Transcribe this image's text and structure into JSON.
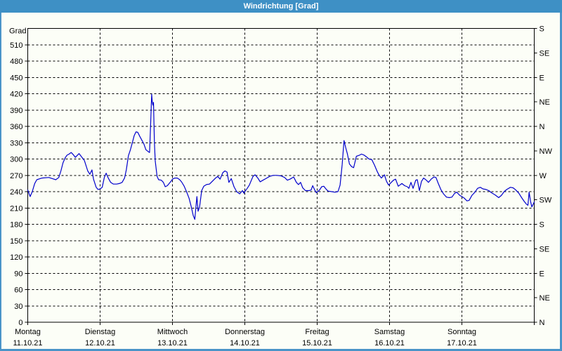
{
  "window": {
    "title": "Windrichtung [Grad]"
  },
  "colors": {
    "titlebar": "#3e90c5",
    "window_border": "#4a94c8",
    "background": "#fcfef7",
    "plot_border": "#000000",
    "grid": "#000000",
    "text": "#000000",
    "line": "#0000cc"
  },
  "chart_data": {
    "type": "line",
    "title": "Windrichtung [Grad]",
    "grid": "dashed, horizontal every 30 deg, vertical at day boundaries",
    "legend_position": "none",
    "y_axis": {
      "label": "Grad",
      "min": 0,
      "max": 540,
      "tick_step": 30
    },
    "right_axis": {
      "description": "compass direction every 45 deg, top to bottom",
      "labels_top_to_bottom": [
        "S",
        "SE",
        "E",
        "NE",
        "N",
        "NW",
        "W",
        "SW",
        "S",
        "SE",
        "E",
        "NE",
        "N"
      ]
    },
    "x_axis": {
      "hours_total": 168,
      "days": [
        {
          "name": "Montag",
          "date": "11.10.21"
        },
        {
          "name": "Dienstag",
          "date": "12.10.21"
        },
        {
          "name": "Mittwoch",
          "date": "13.10.21"
        },
        {
          "name": "Donnerstag",
          "date": "14.10.21"
        },
        {
          "name": "Freitag",
          "date": "15.10.21"
        },
        {
          "name": "Samstag",
          "date": "16.10.21"
        },
        {
          "name": "Sonntag",
          "date": "17.10.21"
        }
      ]
    },
    "series": [
      {
        "name": "Windrichtung",
        "unit": "Grad",
        "points_hours_deg": [
          [
            0,
            243
          ],
          [
            0.8,
            231
          ],
          [
            1.5,
            240
          ],
          [
            2.3,
            255
          ],
          [
            3,
            262
          ],
          [
            4.7,
            265
          ],
          [
            7,
            266
          ],
          [
            9.3,
            262
          ],
          [
            10.3,
            266
          ],
          [
            11,
            278
          ],
          [
            11.7,
            293
          ],
          [
            12.4,
            302
          ],
          [
            13,
            307
          ],
          [
            13.7,
            309
          ],
          [
            14.4,
            312
          ],
          [
            15.1,
            308
          ],
          [
            15.8,
            303
          ],
          [
            16.3,
            306
          ],
          [
            17,
            310
          ],
          [
            17.7,
            305
          ],
          [
            18.4,
            300
          ],
          [
            18.8,
            297
          ],
          [
            19.9,
            278
          ],
          [
            20.6,
            272
          ],
          [
            21.3,
            280
          ],
          [
            21.8,
            263
          ],
          [
            22.7,
            248
          ],
          [
            23.3,
            244
          ],
          [
            24,
            245
          ],
          [
            24.7,
            248
          ],
          [
            25.4,
            266
          ],
          [
            26,
            274
          ],
          [
            26.6,
            266
          ],
          [
            27.5,
            257
          ],
          [
            28.4,
            254
          ],
          [
            29.5,
            254
          ],
          [
            30.4,
            255
          ],
          [
            31.3,
            257
          ],
          [
            32.1,
            265
          ],
          [
            32.7,
            280
          ],
          [
            33.4,
            306
          ],
          [
            34,
            316
          ],
          [
            34.7,
            330
          ],
          [
            35.3,
            343
          ],
          [
            35.9,
            350
          ],
          [
            36.5,
            349
          ],
          [
            37.2,
            341
          ],
          [
            37.9,
            334
          ],
          [
            38.5,
            328
          ],
          [
            39.2,
            317
          ],
          [
            39.9,
            314
          ],
          [
            40.4,
            312
          ],
          [
            40.8,
            370
          ],
          [
            41.1,
            419
          ],
          [
            41.3,
            406
          ],
          [
            41.5,
            399
          ],
          [
            41.7,
            404
          ],
          [
            42,
            330
          ],
          [
            42.3,
            296
          ],
          [
            42.9,
            268
          ],
          [
            43.4,
            262
          ],
          [
            44.3,
            261
          ],
          [
            45,
            257
          ],
          [
            45.6,
            249
          ],
          [
            46.3,
            251
          ],
          [
            46.9,
            255
          ],
          [
            47.5,
            259
          ],
          [
            48,
            263
          ],
          [
            48.8,
            265
          ],
          [
            49.6,
            265
          ],
          [
            50.4,
            262
          ],
          [
            51,
            258
          ],
          [
            51.9,
            250
          ],
          [
            52.8,
            238
          ],
          [
            53.5,
            228
          ],
          [
            54.2,
            213
          ],
          [
            54.9,
            196
          ],
          [
            55.4,
            189
          ],
          [
            55.9,
            219
          ],
          [
            56.1,
            231
          ],
          [
            56.5,
            204
          ],
          [
            57,
            212
          ],
          [
            57.7,
            242
          ],
          [
            58.4,
            250
          ],
          [
            59.3,
            253
          ],
          [
            60.3,
            254
          ],
          [
            61.2,
            259
          ],
          [
            62.3,
            265
          ],
          [
            63,
            268
          ],
          [
            63.8,
            263
          ],
          [
            64.7,
            275
          ],
          [
            65.4,
            278
          ],
          [
            66.1,
            276
          ],
          [
            66.7,
            257
          ],
          [
            67.5,
            264
          ],
          [
            68.4,
            249
          ],
          [
            69.3,
            240
          ],
          [
            70.3,
            236
          ],
          [
            71.2,
            242
          ],
          [
            71.7,
            237
          ],
          [
            72,
            240
          ],
          [
            72.8,
            246
          ],
          [
            73.5,
            252
          ],
          [
            74.7,
            268
          ],
          [
            75.4,
            271
          ],
          [
            76.3,
            265
          ],
          [
            77.1,
            258
          ],
          [
            78,
            261
          ],
          [
            79,
            264
          ],
          [
            80.2,
            268
          ],
          [
            81.4,
            270
          ],
          [
            82.6,
            270
          ],
          [
            84,
            269
          ],
          [
            85.2,
            266
          ],
          [
            86.1,
            261
          ],
          [
            87,
            263
          ],
          [
            88.2,
            267
          ],
          [
            89.1,
            257
          ],
          [
            89.8,
            253
          ],
          [
            90.5,
            257
          ],
          [
            91.2,
            247
          ],
          [
            92.1,
            242
          ],
          [
            93.3,
            242
          ],
          [
            94,
            243
          ],
          [
            94.5,
            251
          ],
          [
            95.2,
            243
          ],
          [
            95.7,
            238
          ],
          [
            96.8,
            243
          ],
          [
            97.5,
            249
          ],
          [
            98.2,
            250
          ],
          [
            98.9,
            245
          ],
          [
            99.6,
            241
          ],
          [
            100.8,
            240
          ],
          [
            101.9,
            239
          ],
          [
            102.9,
            240
          ],
          [
            103.6,
            252
          ],
          [
            104.3,
            290
          ],
          [
            104.9,
            334
          ],
          [
            105.5,
            320
          ],
          [
            106,
            310
          ],
          [
            106.7,
            291
          ],
          [
            107.4,
            286
          ],
          [
            108.1,
            284
          ],
          [
            109,
            305
          ],
          [
            110,
            307
          ],
          [
            110.7,
            309
          ],
          [
            111.6,
            307
          ],
          [
            112.3,
            304
          ],
          [
            113.2,
            300
          ],
          [
            114.1,
            299
          ],
          [
            115,
            289
          ],
          [
            116,
            276
          ],
          [
            116.6,
            270
          ],
          [
            117.3,
            265
          ],
          [
            118.3,
            271
          ],
          [
            119,
            259
          ],
          [
            119.7,
            252
          ],
          [
            120.4,
            256
          ],
          [
            121.3,
            261
          ],
          [
            122,
            263
          ],
          [
            122.9,
            250
          ],
          [
            124.1,
            255
          ],
          [
            125,
            251
          ],
          [
            125.9,
            249
          ],
          [
            126.4,
            246
          ],
          [
            127.1,
            257
          ],
          [
            127.8,
            246
          ],
          [
            128.7,
            261
          ],
          [
            129.2,
            262
          ],
          [
            129.9,
            242
          ],
          [
            130.6,
            259
          ],
          [
            131.3,
            265
          ],
          [
            132.2,
            261
          ],
          [
            132.9,
            257
          ],
          [
            133.8,
            263
          ],
          [
            134.7,
            267
          ],
          [
            135.4,
            266
          ],
          [
            136.1,
            256
          ],
          [
            137,
            244
          ],
          [
            137.9,
            236
          ],
          [
            138.9,
            230
          ],
          [
            139.8,
            229
          ],
          [
            140.7,
            230
          ],
          [
            141.6,
            237
          ],
          [
            142.3,
            239
          ],
          [
            143.3,
            233
          ],
          [
            144,
            231
          ],
          [
            144.8,
            228
          ],
          [
            145.7,
            223
          ],
          [
            146.4,
            224
          ],
          [
            147.3,
            233
          ],
          [
            148.3,
            239
          ],
          [
            149.2,
            246
          ],
          [
            150.1,
            248
          ],
          [
            151,
            245
          ],
          [
            152,
            244
          ],
          [
            152.9,
            242
          ],
          [
            153.8,
            238
          ],
          [
            155,
            234
          ],
          [
            156.2,
            229
          ],
          [
            157.1,
            233
          ],
          [
            158,
            240
          ],
          [
            158.9,
            244
          ],
          [
            160.1,
            248
          ],
          [
            161,
            247
          ],
          [
            161.9,
            243
          ],
          [
            162.9,
            237
          ],
          [
            163.8,
            229
          ],
          [
            164.7,
            222
          ],
          [
            165.4,
            217
          ],
          [
            165.9,
            215
          ],
          [
            166.3,
            239
          ],
          [
            166.8,
            221
          ],
          [
            167.2,
            212
          ],
          [
            168,
            221
          ]
        ]
      }
    ]
  }
}
